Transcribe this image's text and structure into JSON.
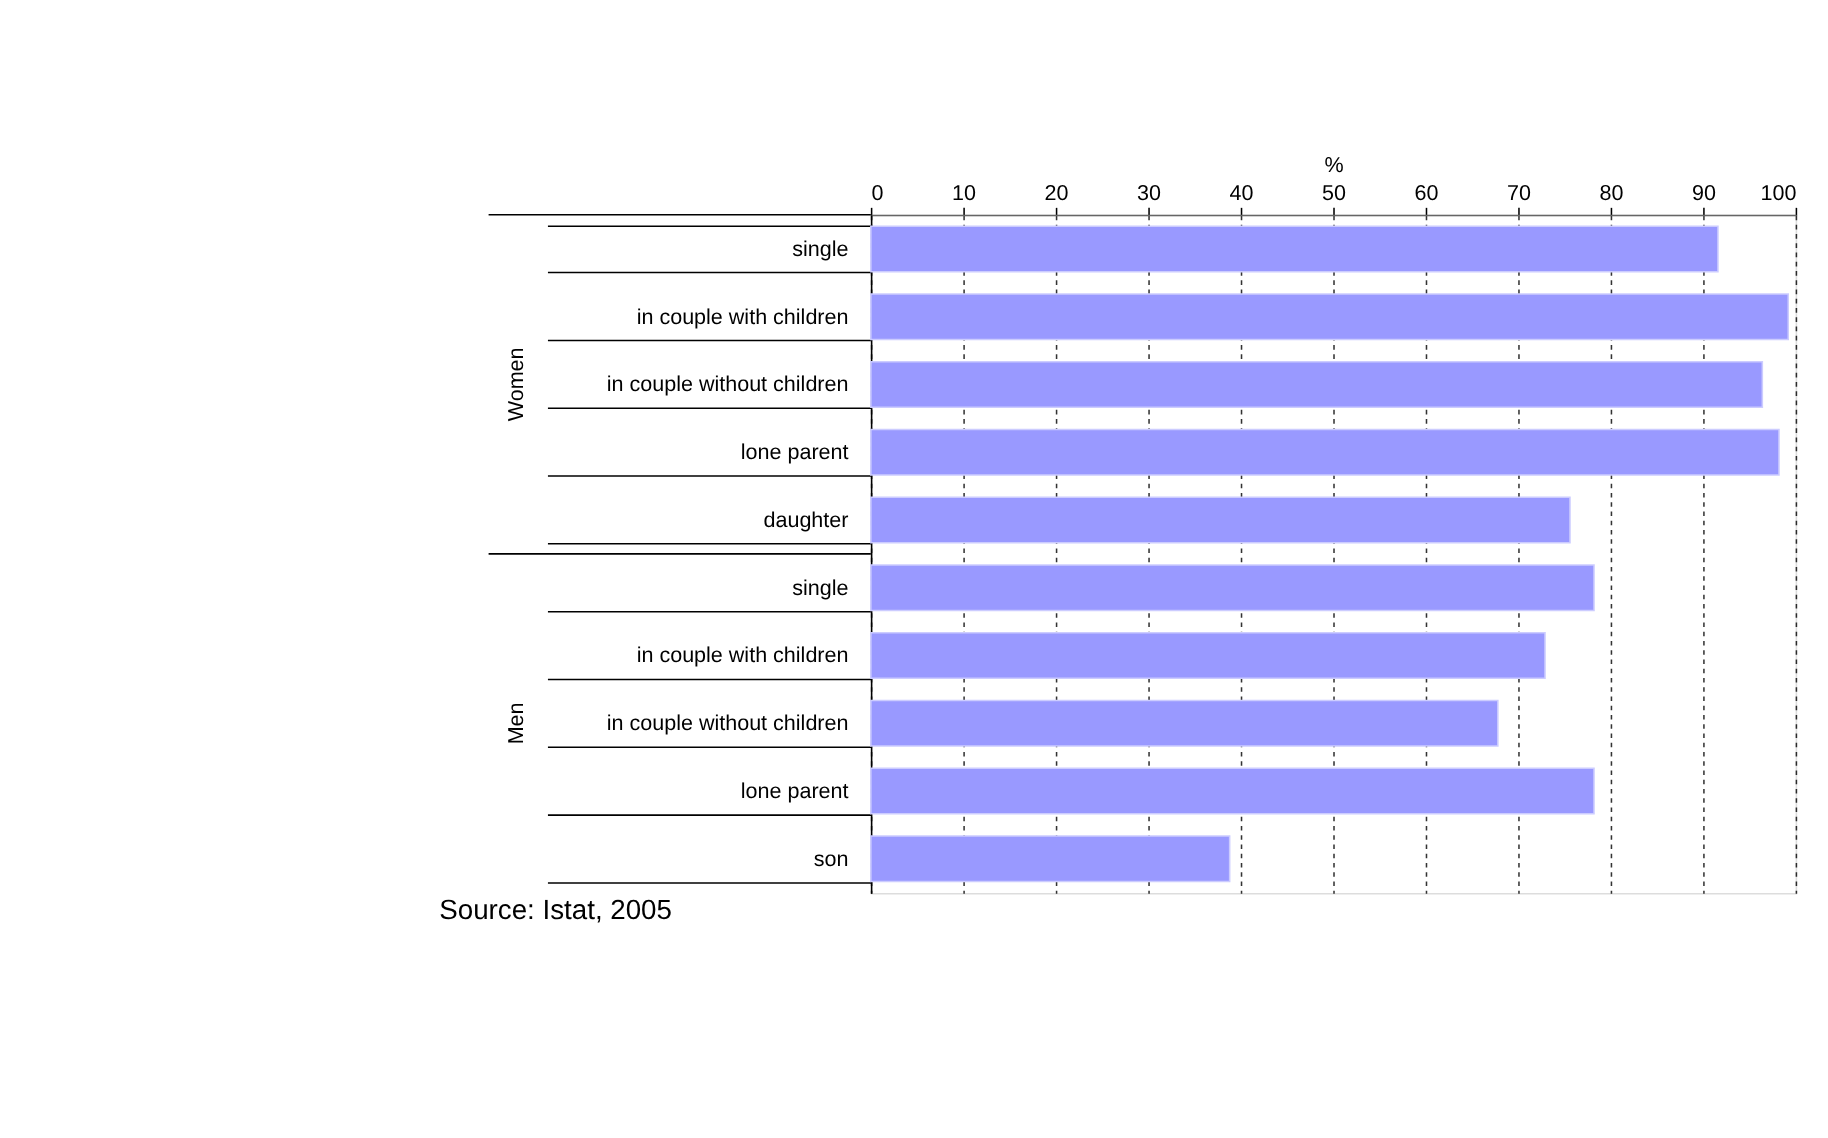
{
  "chart_data": {
    "type": "bar",
    "orientation": "horizontal",
    "xlabel": "%",
    "categories": [
      "single",
      "in couple with children",
      "in couple without children",
      "lone parent",
      "daughter",
      "single",
      "in couple with children",
      "in couple without children",
      "lone parent",
      "son"
    ],
    "values": [
      91.6,
      99.2,
      96.4,
      98.2,
      75.6,
      78.2,
      72.9,
      67.8,
      78.2,
      38.8
    ],
    "color": "#9999ff",
    "xlim": [
      0,
      100
    ],
    "xticks": [
      0,
      10,
      20,
      30,
      40,
      50,
      60,
      70,
      80,
      90,
      100
    ],
    "grid": "x",
    "annotations": [
      "Women",
      "Men",
      "Source: Istat, 2005"
    ]
  }
}
